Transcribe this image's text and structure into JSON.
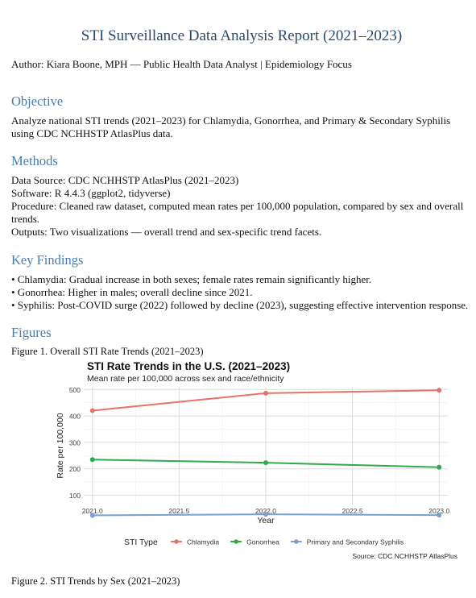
{
  "report": {
    "title": "STI Surveillance Data Analysis Report (2021–2023)",
    "author_line": "Author: Kiara Boone, MPH — Public Health Data Analyst | Epidemiology Focus"
  },
  "objective": {
    "heading": "Objective",
    "text": "Analyze national STI trends (2021–2023) for Chlamydia, Gonorrhea, and Primary & Secondary Syphilis using CDC NCHHSTP AtlasPlus data."
  },
  "methods": {
    "heading": "Methods",
    "lines": [
      "Data Source: CDC NCHHSTP AtlasPlus (2021–2023)",
      "Software: R 4.4.3 (ggplot2, tidyverse)",
      "Procedure: Cleaned raw dataset, computed mean rates per 100,000 population, compared by sex and overall trends.",
      "Outputs: Two visualizations — overall trend and sex-specific trend facets."
    ]
  },
  "findings": {
    "heading": "Key Findings",
    "items": [
      "• Chlamydia: Gradual increase in both sexes; female rates remain significantly higher.",
      "• Gonorrhea: Higher in males; overall decline since 2021.",
      "• Syphilis: Post-COVID surge (2022) followed by decline (2023), suggesting effective intervention response."
    ]
  },
  "figures": {
    "heading": "Figures",
    "figure1_caption": "Figure 1. Overall STI Rate Trends (2021–2023)",
    "figure2_caption": "Figure 2. STI Trends by Sex (2021–2023)"
  },
  "chart_data": {
    "type": "line",
    "title": "STI Rate Trends in the U.S. (2021–2023)",
    "subtitle": "Mean rate per 100,000 across sex and race/ethnicity",
    "xlabel": "Year",
    "ylabel": "Rate per 100,000",
    "caption": "Source: CDC NCHHSTP AtlasPlus",
    "legend_title": "STI Type",
    "legend_position": "bottom",
    "grid": true,
    "xlim": [
      2020.95,
      2023.05
    ],
    "ylim": [
      65,
      510
    ],
    "x_ticks": [
      2021.0,
      2021.5,
      2022.0,
      2022.5,
      2023.0
    ],
    "x_tick_labels": [
      "2021.0",
      "2021.5",
      "2022.0",
      "2022.5",
      "2023.0"
    ],
    "y_ticks": [
      100,
      200,
      300,
      400,
      500
    ],
    "y_tick_labels": [
      "100",
      "200",
      "300",
      "400",
      "500"
    ],
    "x": [
      2021,
      2022,
      2023
    ],
    "series": [
      {
        "name": "Chlamydia",
        "color": "#e5736b",
        "values": [
          420,
          486,
          497
        ]
      },
      {
        "name": "Gonorrhea",
        "color": "#2eac48",
        "values": [
          235,
          223,
          206
        ]
      },
      {
        "name": "Primary and Secondary Syphilis",
        "color": "#7b9fd6",
        "values": [
          24,
          28,
          25
        ]
      }
    ]
  }
}
